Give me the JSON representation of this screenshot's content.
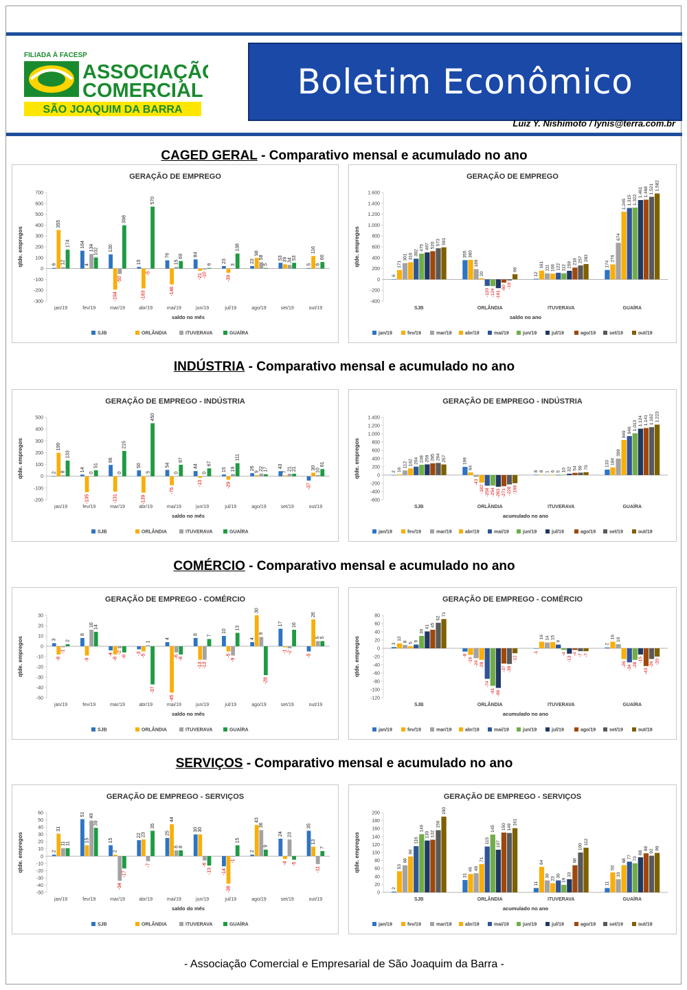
{
  "header": {
    "logo": {
      "top": "FILIADA À FACESP",
      "line1": "ASSOCIAÇÃO",
      "line2": "COMERCIAL",
      "band": "SÃO JOAQUIM DA BARRA"
    },
    "title": "Boletim Econômico",
    "author": "Luiz Y. Nishimoto / lynis@terra.com.br"
  },
  "sections": [
    {
      "title": "CAGED GERAL",
      "subtitle": " - Comparativo mensal e acumulado no ano"
    },
    {
      "title": "INDÚSTRIA",
      "subtitle": " - Comparativo mensal e acumulado no ano"
    },
    {
      "title": "COMÉRCIO",
      "subtitle": " - Comparativo mensal e acumulado no ano"
    },
    {
      "title": "SERVIÇOS",
      "subtitle": " - Comparativo mensal e acumulado no ano"
    }
  ],
  "footer": "- Associação Comercial e Empresarial de São Joaquim da Barra -",
  "colors": {
    "cities": [
      "#2e74c2",
      "#f9ae0a",
      "#a3a3a3",
      "#1e9b43"
    ],
    "months": [
      "#2e74c2",
      "#f9ae0a",
      "#a3a3a3",
      "#f9ae0a",
      "#2f5597",
      "#70ad47",
      "#1f3864",
      "#9e480e",
      "#595959",
      "#7f6000"
    ],
    "negative_label": "#e00000"
  },
  "chart_data": [
    {
      "type": "bar",
      "title": "GERAÇÃO DE EMPREGO",
      "xlabel": "saldo no mês",
      "ylabel": "qtde. empregos",
      "ylim": [
        -300,
        700
      ],
      "yticks": [
        -300,
        -200,
        -100,
        0,
        100,
        200,
        300,
        400,
        500,
        600,
        700
      ],
      "categories": [
        "jan/19",
        "fev/19",
        "mar/19",
        "abr/19",
        "mai/19",
        "jun/19",
        "jul/19",
        "ago/19",
        "set/19",
        "out/19"
      ],
      "series": [
        {
          "name": "SJB",
          "values": [
            6,
            164,
            130,
            15,
            76,
            84,
            23,
            23,
            53,
            5
          ]
        },
        {
          "name": "ORLÂNDIA",
          "values": [
            355,
            4,
            -194,
            -183,
            -146,
            -21,
            -39,
            98,
            39,
            116
          ]
        },
        {
          "name": "ITUVERAVA",
          "values": [
            12,
            134,
            -50,
            -5,
            15,
            -10,
            3,
            58,
            34,
            6
          ]
        },
        {
          "name": "GUAÍRA",
          "values": [
            174,
            102,
            398,
            570,
            69,
            6,
            138,
            5,
            53,
            60
          ]
        }
      ]
    },
    {
      "type": "bar",
      "title": "GERAÇÃO DE EMPREGO",
      "xlabel": "saldo no ano",
      "ylabel": "qtde. empregos",
      "ylim": [
        -400,
        1600
      ],
      "yticks": [
        -400,
        -200,
        0,
        200,
        400,
        600,
        800,
        1000,
        1200,
        1400,
        1600
      ],
      "categories": [
        "SJB",
        "ORLÂNDIA",
        "ITUVERAVA",
        "GUAÍRA"
      ],
      "series": [
        {
          "name": "jan/19",
          "values": [
            6,
            355,
            12,
            174
          ]
        },
        {
          "name": "fev/19",
          "values": [
            171,
            360,
            161,
            276
          ]
        },
        {
          "name": "mar/19",
          "values": [
            301,
            189,
            111,
            674
          ]
        },
        {
          "name": "abr/19",
          "values": [
            316,
            20,
            106,
            1245
          ]
        },
        {
          "name": "mai/19",
          "values": [
            382,
            -120,
            122,
            1315
          ]
        },
        {
          "name": "jun/19",
          "values": [
            475,
            -124,
            112,
            1322
          ]
        },
        {
          "name": "jul/19",
          "values": [
            497,
            -161,
            159,
            1461
          ]
        },
        {
          "name": "ago/19",
          "values": [
            520,
            -60,
            218,
            1468
          ]
        },
        {
          "name": "set/19",
          "values": [
            573,
            -19,
            257,
            1521
          ]
        },
        {
          "name": "out/19",
          "values": [
            591,
            96,
            283,
            1582
          ]
        }
      ]
    },
    {
      "type": "bar",
      "title": "GERAÇÃO DE EMPREGO - INDÚSTRIA",
      "xlabel": "saldo no mês",
      "ylabel": "qtde. empregos",
      "ylim": [
        -200,
        500
      ],
      "yticks": [
        -200,
        -100,
        0,
        100,
        200,
        300,
        400,
        500
      ],
      "categories": [
        "jan/19",
        "fev/19",
        "mar/19",
        "abr/19",
        "mai/19",
        "jun/19",
        "jul/19",
        "ago/19",
        "set/19",
        "out/19"
      ],
      "series": [
        {
          "name": "SJB",
          "values": [
            2,
            14,
            96,
            50,
            54,
            44,
            15,
            26,
            43,
            -37
          ]
        },
        {
          "name": "ORLÂNDIA",
          "values": [
            199,
            -135,
            -131,
            -139,
            -76,
            -13,
            -29,
            9,
            7,
            30
          ]
        },
        {
          "name": "ITUVERAVA",
          "values": [
            8,
            0,
            0,
            5,
            0,
            0,
            19,
            22,
            21,
            10
          ]
        },
        {
          "name": "GUAÍRA",
          "values": [
            133,
            51,
            215,
            450,
            97,
            67,
            111,
            17,
            21,
            61
          ]
        }
      ]
    },
    {
      "type": "bar",
      "title": "GERAÇÃO DE EMPREGO - INDÚSTRIA",
      "xlabel": "acumulado no ano",
      "ylabel": "qtde. empregos",
      "ylim": [
        -600,
        1400
      ],
      "yticks": [
        -600,
        -400,
        -200,
        0,
        200,
        400,
        600,
        800,
        1000,
        1200,
        1400
      ],
      "categories": [
        "SJB",
        "ORLÂNDIA",
        "ITUVERAVA",
        "GUAÍRA"
      ],
      "series": [
        {
          "name": "jan/19",
          "values": [
            2,
            199,
            8,
            133
          ]
        },
        {
          "name": "fev/19",
          "values": [
            16,
            64,
            8,
            184
          ]
        },
        {
          "name": "mar/19",
          "values": [
            112,
            -43,
            1,
            399
          ]
        },
        {
          "name": "abr/19",
          "values": [
            162,
            -182,
            6,
            849
          ]
        },
        {
          "name": "mai/19",
          "values": [
            204,
            -258,
            5,
            946
          ]
        },
        {
          "name": "jun/19",
          "values": [
            248,
            -254,
            10,
            1013
          ]
        },
        {
          "name": "jul/19",
          "values": [
            259,
            -283,
            32,
            1124
          ]
        },
        {
          "name": "ago/19",
          "values": [
            285,
            -271,
            54,
            1141
          ]
        },
        {
          "name": "set/19",
          "values": [
            294,
            -228,
            59,
            1162
          ]
        },
        {
          "name": "out/19",
          "values": [
            257,
            -198,
            70,
            1223
          ]
        }
      ]
    },
    {
      "type": "bar",
      "title": "GERAÇÃO DE EMPREGO - COMÉRCIO",
      "xlabel": "saldo no mês",
      "ylabel": "qtde. empregos",
      "ylim": [
        -50,
        30
      ],
      "yticks": [
        -50,
        -40,
        -30,
        -20,
        -10,
        0,
        10,
        20,
        30
      ],
      "categories": [
        "jan/19",
        "fev/19",
        "mar/19",
        "abr/19",
        "mai/19",
        "jun/19",
        "jul/19",
        "ago/19",
        "set/19",
        "out/19"
      ],
      "series": [
        {
          "name": "SJB",
          "values": [
            3,
            8,
            -4,
            -3,
            4,
            8,
            10,
            4,
            17,
            -5
          ]
        },
        {
          "name": "ORLÂNDIA",
          "values": [
            -8,
            -9,
            -8,
            -5,
            -45,
            -13,
            -5,
            30,
            -1,
            26
          ]
        },
        {
          "name": "ITUVERAVA",
          "values": [
            -1,
            16,
            -2,
            1,
            -6,
            -13,
            -9,
            9,
            -2,
            5
          ]
        },
        {
          "name": "GUAÍRA",
          "values": [
            2,
            14,
            -6,
            -37,
            -8,
            7,
            13,
            -28,
            16,
            5
          ]
        }
      ]
    },
    {
      "type": "bar",
      "title": "GERAÇÃO DE EMPREGO - COMÉRCIO",
      "xlabel": "acumulado no ano",
      "ylabel": "qtde. empregos",
      "ylim": [
        -120,
        80
      ],
      "yticks": [
        -120,
        -100,
        -80,
        -60,
        -40,
        -20,
        0,
        20,
        40,
        60,
        80
      ],
      "categories": [
        "SJB",
        "ORLÂNDIA",
        "ITUVERAVA",
        "GUAÍRA"
      ],
      "series": [
        {
          "name": "jan/19",
          "values": [
            3,
            -8,
            -1,
            2
          ]
        },
        {
          "name": "fev/19",
          "values": [
            12,
            -16,
            16,
            16
          ]
        },
        {
          "name": "mar/19",
          "values": [
            8,
            -24,
            14,
            10
          ]
        },
        {
          "name": "abr/19",
          "values": [
            5,
            -28,
            15,
            -26
          ]
        },
        {
          "name": "mai/19",
          "values": [
            9,
            -74,
            9,
            -34
          ]
        },
        {
          "name": "jun/19",
          "values": [
            30,
            -91,
            -4,
            -28
          ]
        },
        {
          "name": "jul/19",
          "values": [
            41,
            -96,
            -13,
            -15
          ]
        },
        {
          "name": "ago/19",
          "values": [
            45,
            -37,
            -4,
            -43
          ]
        },
        {
          "name": "set/19",
          "values": [
            62,
            -38,
            -7,
            -26
          ]
        },
        {
          "name": "out/19",
          "values": [
            71,
            -12,
            -7,
            -20
          ]
        }
      ]
    },
    {
      "type": "bar",
      "title": "GERAÇÃO DE EMPREGO - SERVIÇOS",
      "xlabel": "saldo do mês",
      "ylabel": "qtde. empregos",
      "ylim": [
        -50,
        60
      ],
      "yticks": [
        -50,
        -40,
        -30,
        -20,
        -10,
        0,
        10,
        20,
        30,
        40,
        50,
        60
      ],
      "categories": [
        "jan/19",
        "fev/19",
        "mar/19",
        "abr/19",
        "mai/19",
        "jun/19",
        "jul/19",
        "ago/19",
        "set/19",
        "out/19"
      ],
      "series": [
        {
          "name": "SJB",
          "values": [
            2,
            51,
            15,
            22,
            25,
            30,
            -14,
            2,
            24,
            35
          ]
        },
        {
          "name": "ORLÂNDIA",
          "values": [
            31,
            15,
            2,
            23,
            44,
            30,
            -38,
            43,
            -4,
            13
          ]
        },
        {
          "name": "ITUVERAVA",
          "values": [
            11,
            49,
            -34,
            -7,
            8,
            -6,
            -1,
            36,
            23,
            -11
          ]
        },
        {
          "name": "GUAÍRA",
          "values": [
            11,
            39,
            -17,
            35,
            8,
            -13,
            15,
            9,
            -5,
            7
          ]
        }
      ]
    },
    {
      "type": "bar",
      "title": "GERAÇÃO DE EMPREGO - SERVIÇOS",
      "xlabel": "acumulado no ano",
      "ylabel": "qtde. empregos",
      "ylim": [
        0,
        200
      ],
      "yticks": [
        0,
        20,
        40,
        60,
        80,
        100,
        120,
        140,
        160,
        180,
        200
      ],
      "categories": [
        "SJB",
        "ORLÂNDIA",
        "ITUVERAVA",
        "GUAÍRA"
      ],
      "series": [
        {
          "name": "jan/19",
          "values": [
            2,
            31,
            11,
            11
          ]
        },
        {
          "name": "fev/19",
          "values": [
            53,
            46,
            64,
            50
          ]
        },
        {
          "name": "mar/19",
          "values": [
            68,
            48,
            30,
            33
          ]
        },
        {
          "name": "abr/19",
          "values": [
            90,
            71,
            23,
            68
          ]
        },
        {
          "name": "mai/19",
          "values": [
            116,
            115,
            30,
            77
          ]
        },
        {
          "name": "jun/19",
          "values": [
            146,
            145,
            19,
            73
          ]
        },
        {
          "name": "jul/19",
          "values": [
            130,
            107,
            33,
            88
          ]
        },
        {
          "name": "ago/19",
          "values": [
            132,
            150,
            68,
            98
          ]
        },
        {
          "name": "set/19",
          "values": [
            156,
            149,
            100,
            92
          ]
        },
        {
          "name": "out/19",
          "values": [
            190,
            161,
            112,
            99
          ]
        }
      ]
    }
  ]
}
